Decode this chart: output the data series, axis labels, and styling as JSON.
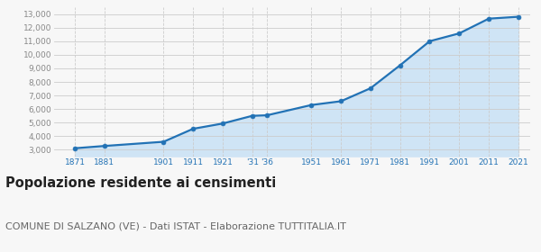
{
  "years": [
    1871,
    1881,
    1901,
    1911,
    1921,
    1931,
    1936,
    1951,
    1961,
    1971,
    1981,
    1991,
    2001,
    2011,
    2021
  ],
  "population": [
    3090,
    3260,
    3570,
    4530,
    4920,
    5490,
    5530,
    6290,
    6570,
    7530,
    9230,
    11010,
    11590,
    12680,
    12820
  ],
  "x_tick_years": [
    1871,
    1881,
    1901,
    1911,
    1921,
    1931,
    1936,
    1951,
    1961,
    1971,
    1981,
    1991,
    2001,
    2011,
    2021
  ],
  "x_tick_labels": [
    "1871",
    "1881",
    "1901",
    "1911",
    "1921",
    "'31",
    "'36",
    "1951",
    "1961",
    "1971",
    "1981",
    "1991",
    "2001",
    "2011",
    "2021"
  ],
  "ylim": [
    2500,
    13500
  ],
  "yticks": [
    3000,
    4000,
    5000,
    6000,
    7000,
    8000,
    9000,
    10000,
    11000,
    12000,
    13000
  ],
  "ytick_labels": [
    "3,000",
    "4,000",
    "5,000",
    "6,000",
    "7,000",
    "8,000",
    "9,000",
    "10,000",
    "11,000",
    "12,000",
    "13,000"
  ],
  "xlim": [
    1864,
    2025
  ],
  "line_color": "#2272b5",
  "fill_color": "#cfe4f5",
  "marker_color": "#2272b5",
  "grid_color_h": "#cccccc",
  "grid_color_v": "#cccccc",
  "background_color": "#f7f7f7",
  "title": "Popolazione residente ai censimenti",
  "subtitle": "COMUNE DI SALZANO (VE) - Dati ISTAT - Elaborazione TUTTITALIA.IT",
  "title_fontsize": 10.5,
  "subtitle_fontsize": 8,
  "title_color": "#222222",
  "subtitle_color": "#666666",
  "tick_label_color": "#2272b5",
  "ytick_label_color": "#888888"
}
